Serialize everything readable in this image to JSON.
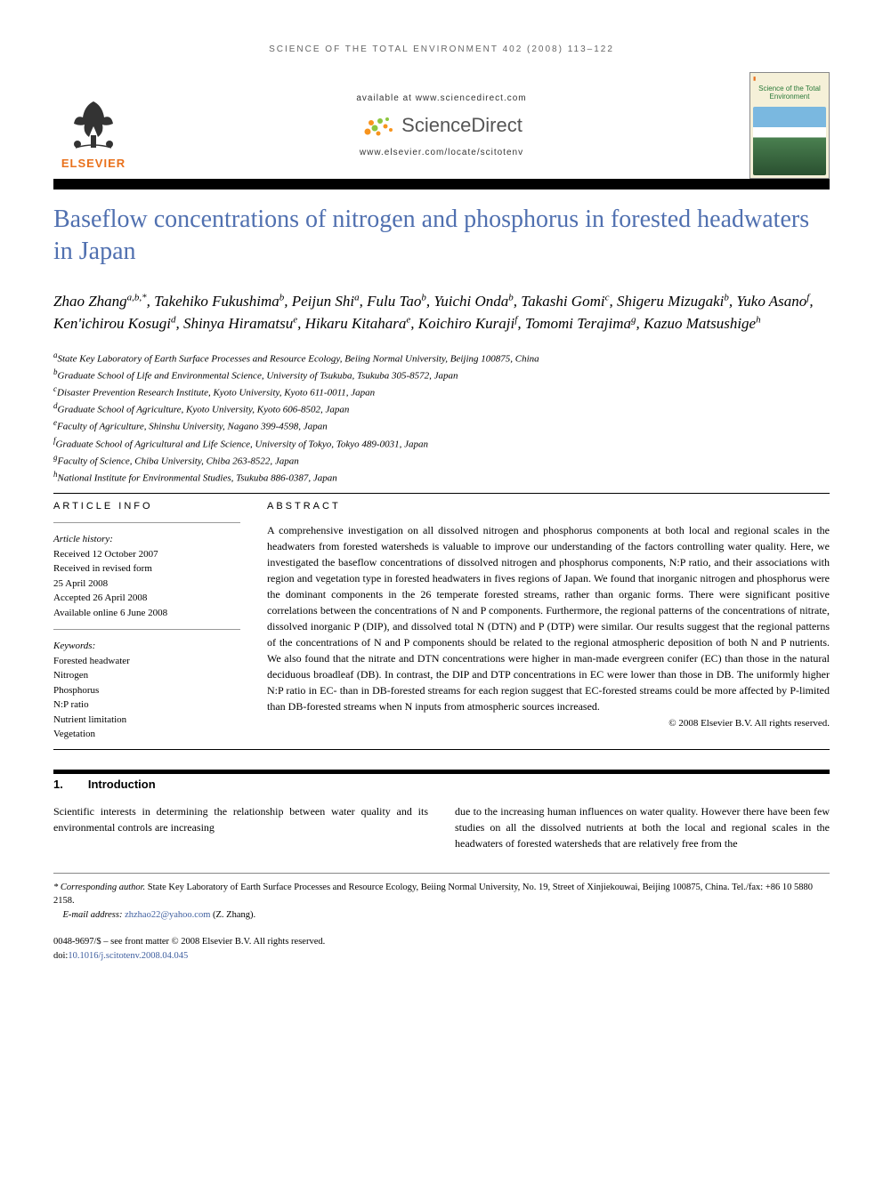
{
  "runningHead": "SCIENCE OF THE TOTAL ENVIRONMENT 402 (2008) 113–122",
  "header": {
    "availableAt": "available at www.sciencedirect.com",
    "sdBrand": "ScienceDirect",
    "locateUrl": "www.elsevier.com/locate/scitotenv",
    "elsevierLabel": "ELSEVIER",
    "journalCoverTitle": "Science of the Total Environment"
  },
  "colors": {
    "titleColor": "#5070b0",
    "elsevierOrange": "#e9711c",
    "sdOrange": "#f7941d",
    "sdGreen": "#8cc63f",
    "linkColor": "#4060a0",
    "textColor": "#000000",
    "grayText": "#666666"
  },
  "title": "Baseflow concentrations of nitrogen and phosphorus in forested headwaters in Japan",
  "authorsHtml": "Zhao Zhang<sup>a,b,*</sup>, Takehiko Fukushima<sup>b</sup>, Peijun Shi<sup>a</sup>, Fulu Tao<sup>b</sup>, Yuichi Onda<sup>b</sup>, Takashi Gomi<sup>c</sup>, Shigeru Mizugaki<sup>b</sup>, Yuko Asano<sup>f</sup>, Ken'ichirou Kosugi<sup>d</sup>, Shinya Hiramatsu<sup>e</sup>, Hikaru Kitahara<sup>e</sup>, Koichiro Kuraji<sup>f</sup>, Tomomi Terajima<sup>g</sup>, Kazuo Matsushige<sup>h</sup>",
  "affiliations": [
    {
      "sup": "a",
      "text": "State Key Laboratory of Earth Surface Processes and Resource Ecology, Beiing Normal University, Beijing 100875, China"
    },
    {
      "sup": "b",
      "text": "Graduate School of Life and Environmental Science, University of Tsukuba, Tsukuba 305-8572, Japan"
    },
    {
      "sup": "c",
      "text": "Disaster Prevention Research Institute, Kyoto University, Kyoto 611-0011, Japan"
    },
    {
      "sup": "d",
      "text": "Graduate School of Agriculture, Kyoto University, Kyoto 606-8502, Japan"
    },
    {
      "sup": "e",
      "text": "Faculty of Agriculture, Shinshu University, Nagano 399-4598, Japan"
    },
    {
      "sup": "f",
      "text": "Graduate School of Agricultural and Life Science, University of Tokyo, Tokyo 489-0031, Japan"
    },
    {
      "sup": "g",
      "text": "Faculty of Science, Chiba University, Chiba 263-8522, Japan"
    },
    {
      "sup": "h",
      "text": "National Institute for Environmental Studies, Tsukuba 886-0387, Japan"
    }
  ],
  "articleInfo": {
    "heading": "ARTICLE INFO",
    "historyLabel": "Article history:",
    "history": [
      "Received 12 October 2007",
      "Received in revised form",
      "25 April 2008",
      "Accepted 26 April 2008",
      "Available online 6 June 2008"
    ],
    "keywordsLabel": "Keywords:",
    "keywords": [
      "Forested headwater",
      "Nitrogen",
      "Phosphorus",
      "N:P ratio",
      "Nutrient limitation",
      "Vegetation"
    ]
  },
  "abstract": {
    "heading": "ABSTRACT",
    "text": "A comprehensive investigation on all dissolved nitrogen and phosphorus components at both local and regional scales in the headwaters from forested watersheds is valuable to improve our understanding of the factors controlling water quality. Here, we investigated the baseflow concentrations of dissolved nitrogen and phosphorus components, N:P ratio, and their associations with region and vegetation type in forested headwaters in fives regions of Japan. We found that inorganic nitrogen and phosphorus were the dominant components in the 26 temperate forested streams, rather than organic forms. There were significant positive correlations between the concentrations of N and P components. Furthermore, the regional patterns of the concentrations of nitrate, dissolved inorganic P (DIP), and dissolved total N (DTN) and P (DTP) were similar. Our results suggest that the regional patterns of the concentrations of N and P components should be related to the regional atmospheric deposition of both N and P nutrients. We also found that the nitrate and DTN concentrations were higher in man-made evergreen conifer (EC) than those in the natural deciduous broadleaf (DB). In contrast, the DIP and DTP concentrations in EC were lower than those in DB. The uniformly higher N:P ratio in EC- than in DB-forested streams for each region suggest that EC-forested streams could be more affected by P-limited than DB-forested streams when N inputs from atmospheric sources increased.",
    "copyright": "© 2008 Elsevier B.V. All rights reserved."
  },
  "intro": {
    "number": "1.",
    "title": "Introduction",
    "col1": "Scientific interests in determining the relationship between water quality and its environmental controls are increasing",
    "col2": "due to the increasing human influences on water quality. However there have been few studies on all the dissolved nutrients at both the local and regional scales in the headwaters of forested watersheds that are relatively free from the"
  },
  "footnotes": {
    "corrLabel": "* Corresponding author.",
    "corrText": " State Key Laboratory of Earth Surface Processes and Resource Ecology, Beiing Normal University, No. 19, Street of Xinjiekouwai, Beijing 100875, China. Tel./fax: +86 10 5880 2158.",
    "emailLabel": "E-mail address: ",
    "email": "zhzhao22@yahoo.com",
    "emailAfter": " (Z. Zhang)."
  },
  "doi": {
    "line1": "0048-9697/$ – see front matter © 2008 Elsevier B.V. All rights reserved.",
    "line2prefix": "doi:",
    "line2": "10.1016/j.scitotenv.2008.04.045"
  }
}
